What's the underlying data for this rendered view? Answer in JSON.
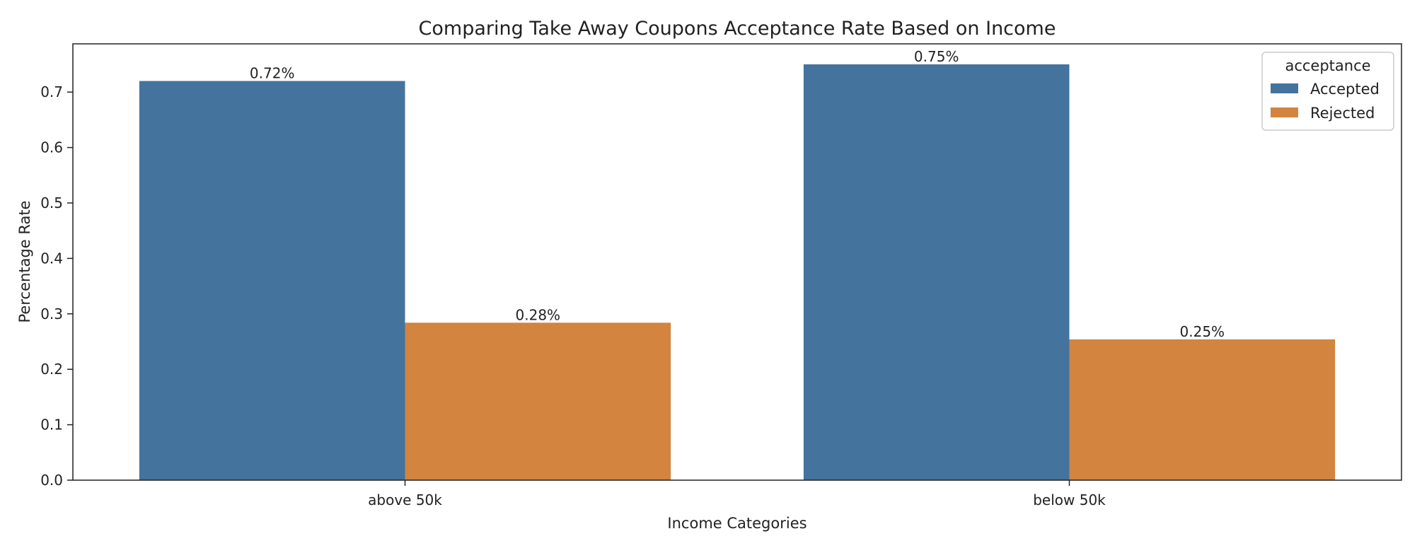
{
  "chart_data": {
    "type": "bar",
    "title": "Comparing Take Away Coupons Acceptance Rate Based on Income",
    "xlabel": "Income Categories",
    "ylabel": "Percentage Rate",
    "categories": [
      "above 50k",
      "below 50k"
    ],
    "series": [
      {
        "name": "Accepted",
        "color": "#44739e",
        "values": [
          0.72,
          0.75
        ],
        "labels": [
          "0.72%",
          "0.75%"
        ]
      },
      {
        "name": "Rejected",
        "color": "#d3843f",
        "values": [
          0.284,
          0.254
        ],
        "labels": [
          "0.28%",
          "0.25%"
        ]
      }
    ],
    "ylim": [
      0,
      0.787
    ],
    "yticks": [
      0.0,
      0.1,
      0.2,
      0.3,
      0.4,
      0.5,
      0.6,
      0.7
    ],
    "ytick_labels": [
      "0.0",
      "0.1",
      "0.2",
      "0.3",
      "0.4",
      "0.5",
      "0.6",
      "0.7"
    ],
    "grid": false,
    "legend": {
      "title": "acceptance",
      "placement": "top-right"
    }
  }
}
